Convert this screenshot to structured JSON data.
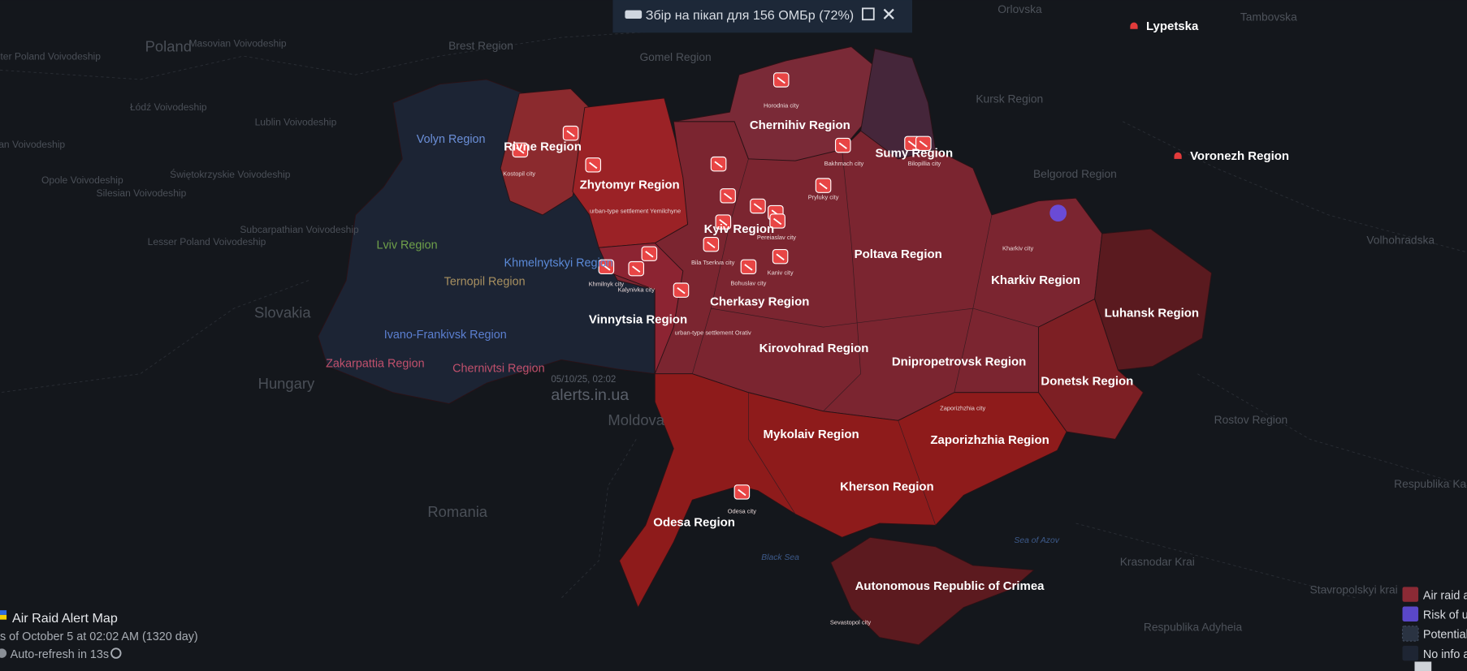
{
  "banner": {
    "text": "Збір на пікап для 156 ОМБр (72%)"
  },
  "regions": [
    "Volyn Region",
    "Rivne Region",
    "Zhytomyr Region",
    "Chernihiv Region",
    "Sumy Region",
    "Kyiv Region",
    "Lviv Region",
    "Ternopil Region",
    "Khmelnytskyi Region",
    "Ivano-Frankivsk Region",
    "Zakarpattia Region",
    "Chernivtsi Region",
    "Vinnytsia Region",
    "Cherkasy Region",
    "Poltava Region",
    "Kharkiv Region",
    "Luhansk Region",
    "Donetsk Region",
    "Dnipropetrovsk Region",
    "Kirovohrad Region",
    "Mykolaiv Region",
    "Zaporizhzhia Region",
    "Kherson Region",
    "Odesa Region",
    "Autonomous Republic of Crimea"
  ],
  "cities": [
    "Horodnia city",
    "Kostopil city",
    "Bakhmach city",
    "Bilopillia city",
    "Pryluky city",
    "Kharkiv city",
    "Bila Tserkva city",
    "Pereiaslav city",
    "Kaniv city",
    "Bohuslav city",
    "Khmilnyk city",
    "Kalynivka city",
    "Odesa city",
    "Zaporizhzhia city",
    "Sevastopol city",
    "urban-type settlement Yemilchyne",
    "urban-type settlement Orativ"
  ],
  "neighbors": [
    "Poland",
    "Masovian Voivodeship",
    "Brest Region",
    "Gomel Region",
    "Orlovska",
    "Tambovska",
    "Kursk Region",
    "Belgorod Region",
    "Lypetska",
    "Voronezh Region",
    "Volhohradska",
    "Rostov Region",
    "Respublika Kal",
    "Krasnodar Krai",
    "Stavropolskyi krai",
    "Respublika Adyheia",
    "Romania",
    "Moldova",
    "Hungary",
    "Slovakia",
    "Lublin Voivodeship",
    "Łódź Voivodeship",
    "Świętokrzyskie Voivodeship",
    "Opole Voivodeship",
    "Silesian Voivodeship",
    "Subcarpathian Voivodeship",
    "Lesser Poland Voivodeship",
    "ter Poland Voivodeship",
    "an Voivodeship"
  ],
  "seas": [
    "Black Sea",
    "Sea of Azov"
  ],
  "watermark": {
    "date": "05/10/25, 02:02",
    "site": "alerts.in.ua"
  },
  "footer": {
    "title": "Air Raid Alert Map",
    "updated": "s of October 5 at 02:02 AM (1320 day)",
    "refresh": "Auto-refresh in 13s"
  },
  "legend": [
    "Air raid a",
    "Risk of u",
    "Potential",
    "No info a"
  ]
}
